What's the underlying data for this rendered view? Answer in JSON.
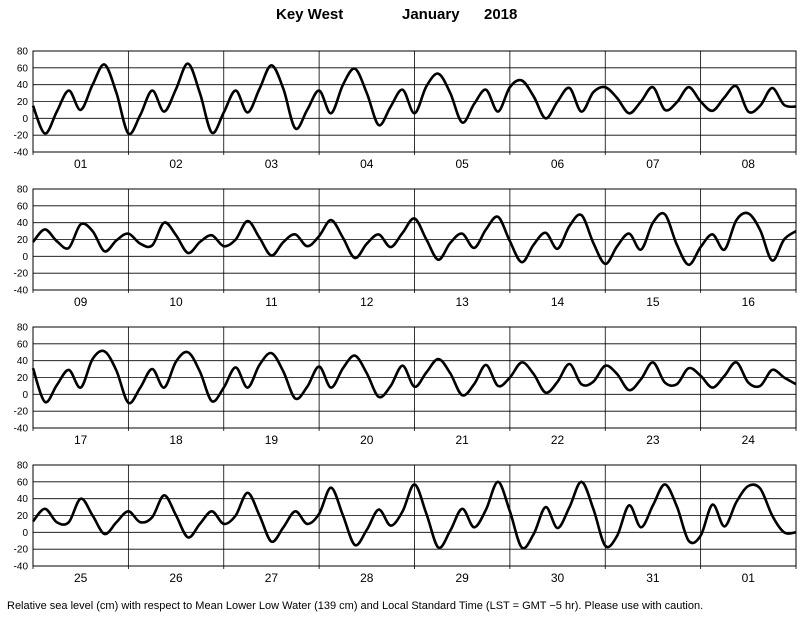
{
  "header": {
    "station": "Key West",
    "month": "January",
    "year": "2018"
  },
  "footnote": "Relative sea level (cm) with respect to Mean Lower Low Water (139 cm) and Local Standard Time (LST = GMT −5 hr). Please use with caution.",
  "chart_data": {
    "type": "line",
    "title": "Key West January 2018",
    "xlabel": "",
    "ylabel": "",
    "ylim": [
      -40,
      80
    ],
    "yticks": [
      -40,
      -20,
      0,
      20,
      40,
      60,
      80
    ],
    "grid": true,
    "rows": [
      {
        "days": [
          "01",
          "02",
          "03",
          "04",
          "05",
          "06",
          "07",
          "08"
        ],
        "x_hours": [
          0,
          3,
          6,
          9,
          12,
          15,
          18,
          21,
          24,
          27,
          30,
          33,
          36,
          39,
          42,
          45,
          48,
          51,
          54,
          57,
          60,
          63,
          66,
          69,
          72,
          75,
          78,
          81,
          84,
          87,
          90,
          93,
          96,
          99,
          102,
          105,
          108,
          111,
          114,
          117,
          120,
          123,
          126,
          129,
          132,
          135,
          138,
          141,
          144,
          147,
          150,
          153,
          156,
          159,
          162,
          165,
          168,
          171,
          174,
          177,
          180,
          183,
          186,
          189,
          192
        ],
        "values": [
          15,
          -18,
          8,
          33,
          10,
          40,
          64,
          30,
          -18,
          4,
          33,
          8,
          35,
          65,
          30,
          -17,
          7,
          33,
          7,
          35,
          63,
          35,
          -12,
          10,
          33,
          6,
          40,
          59,
          30,
          -8,
          14,
          34,
          6,
          38,
          53,
          30,
          -5,
          17,
          34,
          8,
          37,
          45,
          26,
          0,
          20,
          36,
          8,
          31,
          37,
          24,
          6,
          20,
          37,
          10,
          19,
          37,
          20,
          9,
          25,
          38,
          8,
          15,
          36,
          16,
          14
        ]
      },
      {
        "days": [
          "09",
          "10",
          "11",
          "12",
          "13",
          "14",
          "15",
          "16"
        ],
        "x_hours": [
          0,
          3,
          6,
          9,
          12,
          15,
          18,
          21,
          24,
          27,
          30,
          33,
          36,
          39,
          42,
          45,
          48,
          51,
          54,
          57,
          60,
          63,
          66,
          69,
          72,
          75,
          78,
          81,
          84,
          87,
          90,
          93,
          96,
          99,
          102,
          105,
          108,
          111,
          114,
          117,
          120,
          123,
          126,
          129,
          132,
          135,
          138,
          141,
          144,
          147,
          150,
          153,
          156,
          159,
          162,
          165,
          168,
          171,
          174,
          177,
          180,
          183,
          186,
          189,
          192
        ],
        "values": [
          17,
          32,
          18,
          10,
          38,
          30,
          6,
          19,
          27,
          15,
          13,
          40,
          25,
          4,
          17,
          25,
          12,
          20,
          42,
          22,
          1,
          17,
          26,
          12,
          24,
          43,
          22,
          -2,
          15,
          26,
          11,
          28,
          45,
          20,
          -4,
          16,
          27,
          10,
          32,
          47,
          18,
          -7,
          14,
          28,
          9,
          36,
          49,
          16,
          -9,
          12,
          27,
          8,
          40,
          50,
          14,
          -10,
          11,
          26,
          8,
          43,
          51,
          31,
          -5,
          20,
          30
        ]
      },
      {
        "days": [
          "17",
          "18",
          "19",
          "20",
          "21",
          "22",
          "23",
          "24"
        ],
        "x_hours": [
          0,
          3,
          6,
          9,
          12,
          15,
          18,
          21,
          24,
          27,
          30,
          33,
          36,
          39,
          42,
          45,
          48,
          51,
          54,
          57,
          60,
          63,
          66,
          69,
          72,
          75,
          78,
          81,
          84,
          87,
          90,
          93,
          96,
          99,
          102,
          105,
          108,
          111,
          114,
          117,
          120,
          123,
          126,
          129,
          132,
          135,
          138,
          141,
          144,
          147,
          150,
          153,
          156,
          159,
          162,
          165,
          168,
          171,
          174,
          177,
          180,
          183,
          186,
          189,
          192
        ],
        "values": [
          31,
          -9,
          11,
          29,
          8,
          42,
          51,
          28,
          -10,
          8,
          30,
          8,
          39,
          50,
          27,
          -8,
          8,
          32,
          8,
          35,
          49,
          27,
          -5,
          9,
          33,
          8,
          31,
          46,
          25,
          -3,
          10,
          34,
          9,
          26,
          42,
          25,
          -1,
          12,
          35,
          10,
          20,
          38,
          24,
          2,
          15,
          36,
          12,
          15,
          34,
          24,
          5,
          18,
          38,
          14,
          12,
          31,
          22,
          8,
          22,
          38,
          14,
          10,
          29,
          20,
          12
        ]
      },
      {
        "days": [
          "25",
          "26",
          "27",
          "28",
          "29",
          "30",
          "31",
          "01"
        ],
        "x_hours": [
          0,
          3,
          6,
          9,
          12,
          15,
          18,
          21,
          24,
          27,
          30,
          33,
          36,
          39,
          42,
          45,
          48,
          51,
          54,
          57,
          60,
          63,
          66,
          69,
          72,
          75,
          78,
          81,
          84,
          87,
          90,
          93,
          96,
          99,
          102,
          105,
          108,
          111,
          114,
          117,
          120,
          123,
          126,
          129,
          132,
          135,
          138,
          141,
          144,
          147,
          150,
          153,
          156,
          159,
          162,
          165,
          168,
          171,
          174,
          177,
          180,
          183,
          186,
          189,
          192
        ],
        "values": [
          13,
          28,
          12,
          12,
          40,
          20,
          -2,
          12,
          25,
          12,
          18,
          44,
          20,
          -6,
          10,
          25,
          10,
          20,
          47,
          20,
          -11,
          6,
          25,
          10,
          22,
          53,
          20,
          -15,
          3,
          27,
          8,
          25,
          57,
          22,
          -18,
          2,
          28,
          6,
          27,
          60,
          25,
          -18,
          -2,
          30,
          5,
          30,
          60,
          28,
          -16,
          -4,
          32,
          6,
          32,
          57,
          31,
          -10,
          -4,
          33,
          7,
          36,
          55,
          52,
          20,
          0,
          0
        ]
      }
    ]
  },
  "colors": {
    "line": "#000000",
    "grid": "#000000",
    "background": "#ffffff"
  }
}
